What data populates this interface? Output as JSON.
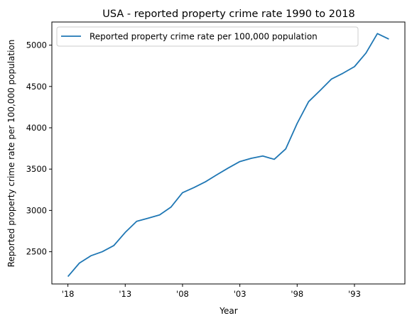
{
  "chart_data": {
    "type": "line",
    "title": "USA - reported property crime rate 1990 to 2018",
    "xlabel": "Year",
    "ylabel": "Reported property crime rate per 100,000 population",
    "x_tick_labels": [
      "'18",
      "'13",
      "'08",
      "'03",
      "'98",
      "'93"
    ],
    "x_tick_years": [
      2018,
      2013,
      2008,
      2003,
      1998,
      1993
    ],
    "y_ticks": [
      2500,
      3000,
      3500,
      4000,
      4500,
      5000
    ],
    "xlim": [
      2019.4,
      1988.6
    ],
    "ylim": [
      2110,
      5280
    ],
    "legend_position": "upper-left",
    "grid": false,
    "series": [
      {
        "name": "Reported property crime rate per 100,000 population",
        "color": "#1f77b4",
        "x": [
          2018,
          2017,
          2016,
          2015,
          2014,
          2013,
          2012,
          2011,
          2010,
          2009,
          2008,
          2007,
          2006,
          2005,
          2004,
          2003,
          2002,
          2001,
          2000,
          1999,
          1998,
          1997,
          1996,
          1995,
          1994,
          1993,
          1992,
          1991,
          1990
        ],
        "y": [
          2199.5,
          2362.2,
          2450.7,
          2500.5,
          2574.1,
          2733.6,
          2868.0,
          2905.4,
          2945.9,
          3041.3,
          3214.6,
          3276.4,
          3346.6,
          3431.5,
          3514.1,
          3591.2,
          3630.6,
          3658.1,
          3618.3,
          3743.6,
          4052.5,
          4316.3,
          4451.0,
          4590.5,
          4660.2,
          4740.0,
          4903.7,
          5140.2,
          5073.1
        ]
      }
    ]
  }
}
